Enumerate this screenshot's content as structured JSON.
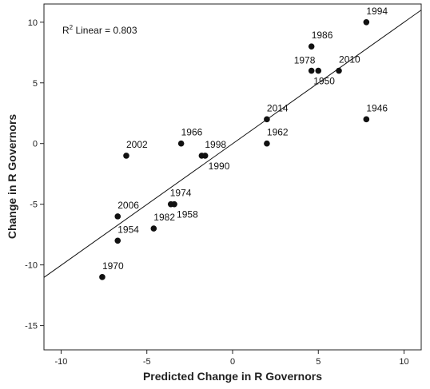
{
  "chart_data": {
    "type": "scatter",
    "xlabel": "Predicted Change in R Governors",
    "ylabel": "Change in R Governors",
    "xlim": [
      -11,
      11
    ],
    "ylim": [
      -17,
      11.5
    ],
    "xticks": [
      -10,
      -5,
      0,
      5,
      10
    ],
    "yticks": [
      -15,
      -10,
      -5,
      0,
      5,
      10
    ],
    "grid": false,
    "annotation": {
      "prefix": "R",
      "superscript": "2",
      "text": " Linear = 0.803"
    },
    "fit_line": {
      "x": [
        -11,
        11
      ],
      "y": [
        -11.03,
        11.0
      ]
    },
    "points": [
      {
        "label": "1994",
        "x": 7.8,
        "y": 10
      },
      {
        "label": "1986",
        "x": 4.6,
        "y": 8
      },
      {
        "label": "1978",
        "x": 4.6,
        "y": 6
      },
      {
        "label": "1950",
        "x": 5.0,
        "y": 6
      },
      {
        "label": "2010",
        "x": 6.2,
        "y": 6
      },
      {
        "label": "2014",
        "x": 2.0,
        "y": 2
      },
      {
        "label": "1946",
        "x": 7.8,
        "y": 2
      },
      {
        "label": "1962",
        "x": 2.0,
        "y": 0
      },
      {
        "label": "1966",
        "x": -3.0,
        "y": 0
      },
      {
        "label": "1998",
        "x": -1.8,
        "y": -1
      },
      {
        "label": "1990",
        "x": -1.6,
        "y": -1
      },
      {
        "label": "2002",
        "x": -6.2,
        "y": -1
      },
      {
        "label": "1974",
        "x": -3.6,
        "y": -5
      },
      {
        "label": "1958",
        "x": -3.4,
        "y": -5
      },
      {
        "label": "2006",
        "x": -6.7,
        "y": -6
      },
      {
        "label": "1982",
        "x": -4.6,
        "y": -7
      },
      {
        "label": "1954",
        "x": -6.7,
        "y": -8
      },
      {
        "label": "1970",
        "x": -7.6,
        "y": -11
      }
    ]
  }
}
